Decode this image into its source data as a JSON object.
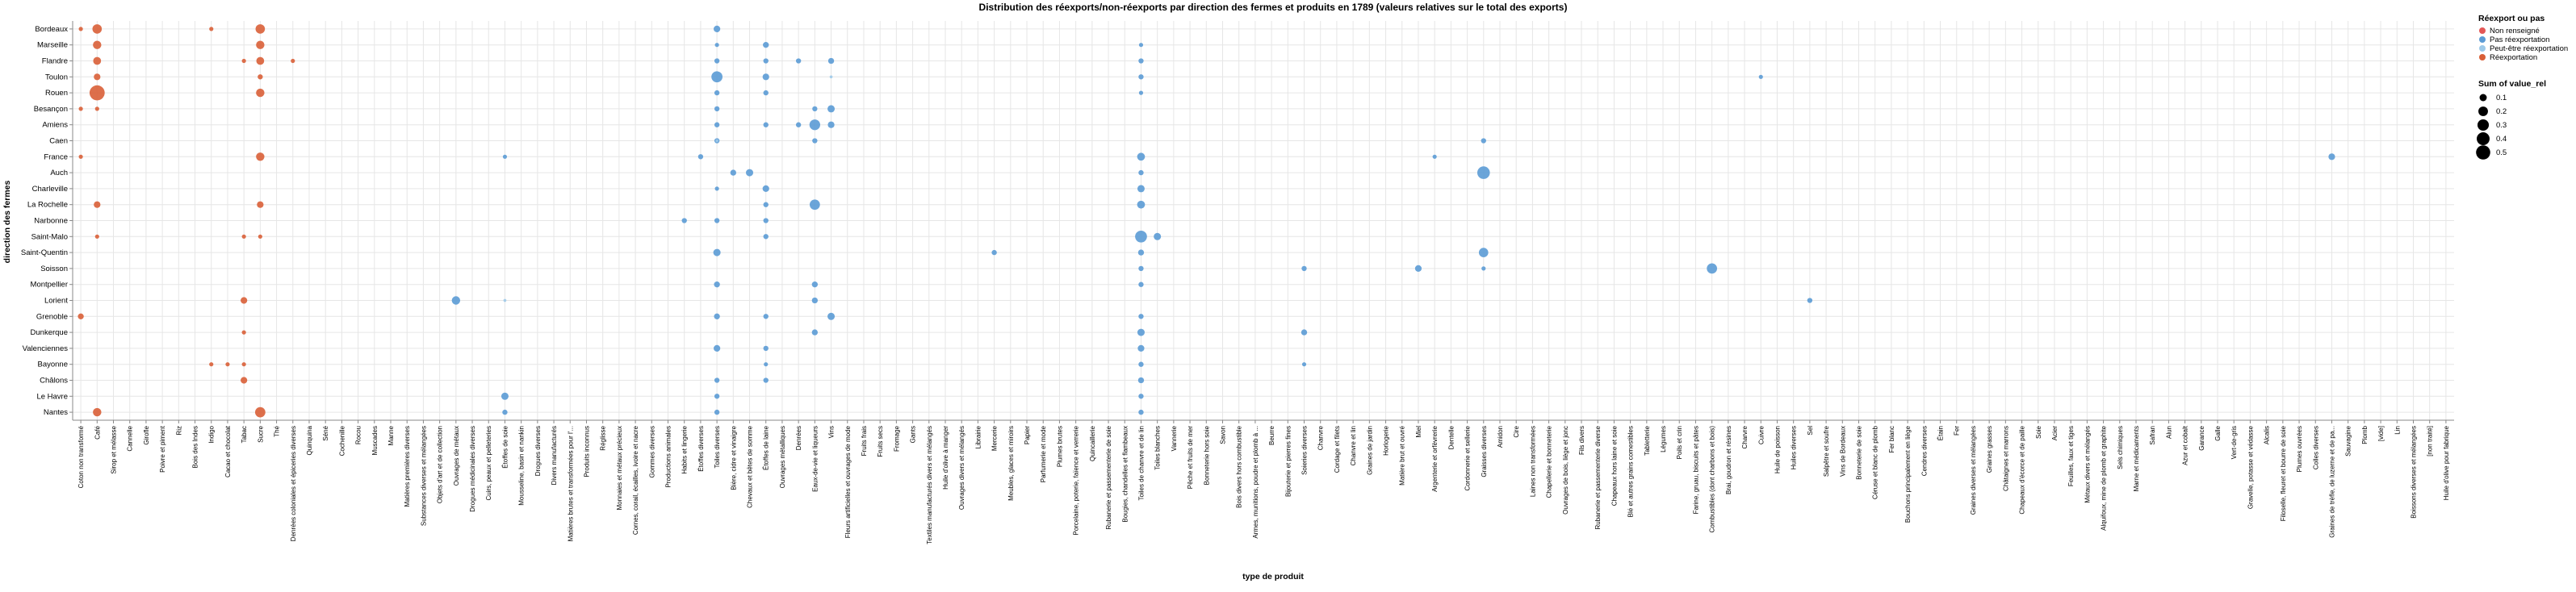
{
  "chart_data": {
    "type": "scatter",
    "title": "Distribution des réexports/non-réexports par direction des fermes et produits en 1789 (valeurs relatives sur le total des exports)",
    "xlabel": "type de produit",
    "ylabel": "direction des fermes",
    "y_categories": [
      "Bordeaux",
      "Marseille",
      "Flandre",
      "Toulon",
      "Rouen",
      "Besançon",
      "Amiens",
      "Caen",
      "France",
      "Auch",
      "Charleville",
      "La Rochelle",
      "Narbonne",
      "Saint-Malo",
      "Saint-Quentin",
      "Soisson",
      "Montpellier",
      "Lorient",
      "Grenoble",
      "Dunkerque",
      "Valenciennes",
      "Bayonne",
      "Châlons",
      "Le Havre",
      "Nantes"
    ],
    "x_categories": [
      "Coton non transformé",
      "Café",
      "Sirop et mélasse",
      "Cannelle",
      "Girofle",
      "Poivre et piment",
      "Riz",
      "Bois des Indes",
      "Indigo",
      "Cacao et chocolat",
      "Tabac",
      "Sucre",
      "Thé",
      "Denrées coloniales et épiceries diverses",
      "Quinquina",
      "Séné",
      "Cochenille",
      "Rocou",
      "Muscades",
      "Manne",
      "Matières premières diverses",
      "Substances diverses et mélangées",
      "Objets d'art et de collection",
      "Ouvrages de métaux",
      "Drogues médicinales diverses",
      "Cuirs, peaux et pelleteries",
      "Étoffes de soie",
      "Mousseline, basin et nankin",
      "Drogues diverses",
      "Divers manufacturés",
      "Matières brutes et transformées pour l'...",
      "Produits inconnus",
      "Réglisse",
      "Monnaies et métaux précieux",
      "Cornes, corail, écailles, ivoire et nacre",
      "Gommes diverses",
      "Productions animales",
      "Habits et lingerie",
      "Étoffes diverses",
      "Toiles diverses",
      "Bière, cidre et vinaigre",
      "Chevaux et bêtes de somme",
      "Étoffes de laine",
      "Ouvrages métalliques",
      "Denrées",
      "Eaux-de-vie et liqueurs",
      "Vins",
      "Fleurs artificielles et ouvrages de mode",
      "Fruits frais",
      "Fruits secs",
      "Fromage",
      "Gants",
      "Textiles manufacturés divers et mélangés",
      "Huile d'olive à manger",
      "Ouvrages divers et mélangés",
      "Librairie",
      "Mercerie",
      "Meubles, glaces et miroirs",
      "Papier",
      "Parfumerie et mode",
      "Plumes brutes",
      "Porcelaine, poterie, faïence et verrerie",
      "Quincaillerie",
      "Rubanerie et passementerie de soie",
      "Bougies, chandelles et flambeaux",
      "Toiles de chanvre et de lin",
      "Toiles blanches",
      "Vannerie",
      "Pêche et fruits de mer",
      "Bonneterie hors soie",
      "Savon",
      "Bois divers hors combustible",
      "Armes, munitions, poudre et plomb à ...",
      "Beurre",
      "Bijouterie et pierres fines",
      "Soieries diverses",
      "Chanvre",
      "Cordage et filets",
      "Chanvre et lin",
      "Graines de jardin",
      "Horlogerie",
      "Matière brut et ouvré",
      "Miel",
      "Argenterie et orfèvrerie",
      "Dentelle",
      "Cordonnerie et sellerie",
      "Graisses diverses",
      "Amidon",
      "Cire",
      "Laines non transformées",
      "Chapellerie et bonneterie",
      "Ouvrages de bois, liège et jonc",
      "Fils divers",
      "Rubanerie et passementerie diverse",
      "Chapeaux hors laine et soie",
      "Blé et autres grains comestibles",
      "Tabletterie",
      "Légumes",
      "Poils et crin",
      "Farine, gruau, biscuits et pâtes",
      "Combustibles (dont charbons et bois)",
      "Brai, goudron et résines",
      "Charvre",
      "Cuivre",
      "Huile de poisson",
      "Huiles diverses",
      "Sel",
      "Salpêtre et soufre",
      "Vins de Bordeaux",
      "Bonneterie de soie",
      "Céruse et blanc de plomb",
      "Fer blanc",
      "Bouchons principalement en liège",
      "Cendres diverses",
      "Étain",
      "Fer",
      "Graines diverses et mélangées",
      "Graines grasses",
      "Châtaignes et marrons",
      "Chapeaux d'écorce et de paille",
      "Soie",
      "Acier",
      "Feuilles, faux et tiges",
      "Métaux divers et mélangés",
      "Alquifoux, mine de plomb et graphite",
      "Sels chimiques",
      "Marne et médicaments",
      "Safran",
      "Alun",
      "Azur et cobalt",
      "Garance",
      "Galle",
      "Vert-de-gris",
      "Gravelle, potasse et védasse",
      "Alcalis",
      "Filoselle, fleuret et bourre de soie",
      "Plumes ouvrées",
      "Colles diverses",
      "Graines de trèfle, de luzerne et de pa...",
      "Sauvagine",
      "Plomb",
      "[vide]",
      "Lin",
      "Boissons diverses et mélangées",
      "[non traité]",
      "Huile d'olive pour fabrique"
    ],
    "series": [
      {
        "name": "Non renseigné",
        "color": "#e45756",
        "points": []
      },
      {
        "name": "Pas réexportation",
        "color": "#5b9bd5",
        "points": [
          [
            "Toiles diverses",
            "Bordeaux",
            0.05
          ],
          [
            "Toiles diverses",
            "Marseille",
            0.02
          ],
          [
            "Étoffes de laine",
            "Marseille",
            0.04
          ],
          [
            "Toiles de chanvre et de lin",
            "Marseille",
            0.02
          ],
          [
            "Toiles diverses",
            "Flandre",
            0.03
          ],
          [
            "Étoffes de laine",
            "Flandre",
            0.03
          ],
          [
            "Denrées",
            "Flandre",
            0.03
          ],
          [
            "Vins",
            "Flandre",
            0.04
          ],
          [
            "Toiles de chanvre et de lin",
            "Flandre",
            0.03
          ],
          [
            "Toiles diverses",
            "Toulon",
            0.14
          ],
          [
            "Étoffes de laine",
            "Toulon",
            0.05
          ],
          [
            "Toiles de chanvre et de lin",
            "Toulon",
            0.03
          ],
          [
            "Cuivre",
            "Toulon",
            0.02
          ],
          [
            "Toiles diverses",
            "Rouen",
            0.03
          ],
          [
            "Étoffes de laine",
            "Rouen",
            0.03
          ],
          [
            "Toiles de chanvre et de lin",
            "Rouen",
            0.02
          ],
          [
            "Toiles diverses",
            "Besançon",
            0.03
          ],
          [
            "Vins",
            "Besançon",
            0.06
          ],
          [
            "Eaux-de-vie et liqueurs",
            "Besançon",
            0.03
          ],
          [
            "Eaux-de-vie et liqueurs",
            "Amiens",
            0.13
          ],
          [
            "Vins",
            "Amiens",
            0.05
          ],
          [
            "Toiles diverses",
            "Amiens",
            0.03
          ],
          [
            "Étoffes de laine",
            "Amiens",
            0.03
          ],
          [
            "Denrées",
            "Amiens",
            0.03
          ],
          [
            "Toiles diverses",
            "Caen",
            0.03
          ],
          [
            "Graisses diverses",
            "Caen",
            0.03
          ],
          [
            "Eaux-de-vie et liqueurs",
            "Caen",
            0.03
          ],
          [
            "Toiles de chanvre et de lin",
            "France",
            0.07
          ],
          [
            "Étoffes diverses",
            "France",
            0.03
          ],
          [
            "Étoffes de soie",
            "France",
            0.02
          ],
          [
            "Argenterie et orfèvrerie",
            "France",
            0.02
          ],
          [
            "Graines de trèfle, de luzerne et de pa...",
            "France",
            0.05
          ],
          [
            "Graisses diverses",
            "Auch",
            0.18
          ],
          [
            "Chevaux et bêtes de somme",
            "Auch",
            0.06
          ],
          [
            "Bière, cidre et vinaigre",
            "Auch",
            0.04
          ],
          [
            "Toiles de chanvre et de lin",
            "Auch",
            0.03
          ],
          [
            "Étoffes de laine",
            "Charleville",
            0.05
          ],
          [
            "Toiles de chanvre et de lin",
            "Charleville",
            0.06
          ],
          [
            "Toiles diverses",
            "Charleville",
            0.02
          ],
          [
            "Eaux-de-vie et liqueurs",
            "La Rochelle",
            0.12
          ],
          [
            "Toiles de chanvre et de lin",
            "La Rochelle",
            0.07
          ],
          [
            "Étoffes de laine",
            "La Rochelle",
            0.03
          ],
          [
            "Toiles diverses",
            "Narbonne",
            0.03
          ],
          [
            "Habits et lingerie",
            "Narbonne",
            0.03
          ],
          [
            "Étoffes de laine",
            "Narbonne",
            0.03
          ],
          [
            "Toiles de chanvre et de lin",
            "Saint-Malo",
            0.16
          ],
          [
            "Toiles blanches",
            "Saint-Malo",
            0.06
          ],
          [
            "Étoffes de laine",
            "Saint-Malo",
            0.03
          ],
          [
            "Toiles diverses",
            "Saint-Quentin",
            0.06
          ],
          [
            "Graisses diverses",
            "Saint-Quentin",
            0.1
          ],
          [
            "Toiles de chanvre et de lin",
            "Saint-Quentin",
            0.04
          ],
          [
            "Mercerie",
            "Saint-Quentin",
            0.03
          ],
          [
            "Combustibles (dont charbons et bois)",
            "Soisson",
            0.12
          ],
          [
            "Miel",
            "Soisson",
            0.05
          ],
          [
            "Soieries diverses",
            "Soisson",
            0.03
          ],
          [
            "Toiles de chanvre et de lin",
            "Soisson",
            0.03
          ],
          [
            "Graisses diverses",
            "Soisson",
            0.02
          ],
          [
            "Ouvrages de métaux",
            "Lorient",
            0.08
          ],
          [
            "Eaux-de-vie et liqueurs",
            "Lorient",
            0.04
          ],
          [
            "Sel",
            "Lorient",
            0.03
          ],
          [
            "Toiles diverses",
            "Montpellier",
            0.04
          ],
          [
            "Eaux-de-vie et liqueurs",
            "Montpellier",
            0.04
          ],
          [
            "Toiles de chanvre et de lin",
            "Montpellier",
            0.03
          ],
          [
            "Vins",
            "Grenoble",
            0.06
          ],
          [
            "Toiles diverses",
            "Grenoble",
            0.04
          ],
          [
            "Étoffes de laine",
            "Grenoble",
            0.03
          ],
          [
            "Toiles de chanvre et de lin",
            "Grenoble",
            0.03
          ],
          [
            "Toiles de chanvre et de lin",
            "Dunkerque",
            0.06
          ],
          [
            "Eaux-de-vie et liqueurs",
            "Dunkerque",
            0.04
          ],
          [
            "Soieries diverses",
            "Dunkerque",
            0.04
          ],
          [
            "Toiles diverses",
            "Valenciennes",
            0.05
          ],
          [
            "Toiles de chanvre et de lin",
            "Valenciennes",
            0.05
          ],
          [
            "Étoffes de laine",
            "Valenciennes",
            0.03
          ],
          [
            "Toiles de chanvre et de lin",
            "Bayonne",
            0.03
          ],
          [
            "Étoffes de laine",
            "Bayonne",
            0.02
          ],
          [
            "Soieries diverses",
            "Bayonne",
            0.02
          ],
          [
            "Toiles de chanvre et de lin",
            "Châlons",
            0.04
          ],
          [
            "Toiles diverses",
            "Châlons",
            0.03
          ],
          [
            "Étoffes de laine",
            "Châlons",
            0.03
          ],
          [
            "Étoffes de soie",
            "Le Havre",
            0.06
          ],
          [
            "Toiles de chanvre et de lin",
            "Le Havre",
            0.03
          ],
          [
            "Toiles diverses",
            "Le Havre",
            0.03
          ],
          [
            "Toiles de chanvre et de lin",
            "Nantes",
            0.03
          ],
          [
            "Toiles diverses",
            "Nantes",
            0.03
          ],
          [
            "Étoffes de soie",
            "Nantes",
            0.03
          ]
        ]
      },
      {
        "name": "Peut-être réexportation",
        "color": "#9ecae9",
        "points": [
          [
            "Toiles diverses",
            "Caen",
            0.01
          ],
          [
            "Étoffes de soie",
            "Lorient",
            0.01
          ],
          [
            "Vins",
            "Toulon",
            0.01
          ]
        ]
      },
      {
        "name": "Réexportation",
        "color": "#d95f37",
        "points": [
          [
            "Café",
            "Bordeaux",
            0.1
          ],
          [
            "Sucre",
            "Bordeaux",
            0.1
          ],
          [
            "Indigo",
            "Bordeaux",
            0.02
          ],
          [
            "Coton non transformé",
            "Bordeaux",
            0.02
          ],
          [
            "Café",
            "Marseille",
            0.08
          ],
          [
            "Sucre",
            "Marseille",
            0.08
          ],
          [
            "Café",
            "Flandre",
            0.07
          ],
          [
            "Sucre",
            "Flandre",
            0.07
          ],
          [
            "Tabac",
            "Flandre",
            0.02
          ],
          [
            "Denrées coloniales et épiceries diverses",
            "Flandre",
            0.02
          ],
          [
            "Café",
            "Toulon",
            0.05
          ],
          [
            "Sucre",
            "Toulon",
            0.03
          ],
          [
            "Café",
            "Rouen",
            0.26
          ],
          [
            "Sucre",
            "Rouen",
            0.08
          ],
          [
            "Coton non transformé",
            "Besançon",
            0.02
          ],
          [
            "Café",
            "Besançon",
            0.02
          ],
          [
            "Sucre",
            "France",
            0.08
          ],
          [
            "Coton non transformé",
            "France",
            0.02
          ],
          [
            "Café",
            "La Rochelle",
            0.05
          ],
          [
            "Sucre",
            "La Rochelle",
            0.05
          ],
          [
            "Café",
            "Saint-Malo",
            0.02
          ],
          [
            "Tabac",
            "Saint-Malo",
            0.02
          ],
          [
            "Sucre",
            "Saint-Malo",
            0.02
          ],
          [
            "Tabac",
            "Lorient",
            0.05
          ],
          [
            "Coton non transformé",
            "Grenoble",
            0.04
          ],
          [
            "Tabac",
            "Dunkerque",
            0.02
          ],
          [
            "Indigo",
            "Bayonne",
            0.02
          ],
          [
            "Cacao et chocolat",
            "Bayonne",
            0.02
          ],
          [
            "Tabac",
            "Bayonne",
            0.02
          ],
          [
            "Tabac",
            "Châlons",
            0.05
          ],
          [
            "Café",
            "Nantes",
            0.08
          ],
          [
            "Sucre",
            "Nantes",
            0.12
          ]
        ]
      }
    ],
    "legend_color_title": "Réexport ou pas",
    "legend_size_title": "Sum of value_rel",
    "size_legend": [
      0.1,
      0.2,
      0.3,
      0.4,
      0.5
    ],
    "legend_placement": "top-right",
    "grid": true
  }
}
